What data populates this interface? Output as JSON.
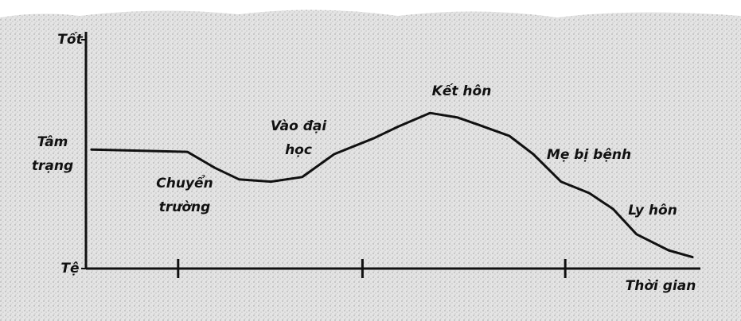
{
  "chart_data": {
    "type": "line",
    "y_label": "Tâm trạng",
    "x_label": "Thời gian",
    "xlim": [
      0,
      100
    ],
    "xticks": [
      15,
      45,
      78
    ],
    "ylim": [
      0,
      10
    ],
    "yticks": [
      {
        "value": 0,
        "label": "Tệ"
      },
      {
        "value": 10,
        "label": "Tốt"
      }
    ],
    "color": "#111111",
    "x": [
      0.9,
      16.5,
      21.0,
      24.9,
      30.1,
      35.2,
      40.4,
      46.9,
      50.8,
      56.0,
      60.5,
      63.7,
      68.9,
      72.8,
      77.3,
      81.9,
      85.8,
      89.6,
      94.8,
      98.7
    ],
    "values": [
      5.2,
      5.1,
      4.4,
      3.9,
      3.8,
      4.0,
      5.0,
      5.7,
      6.2,
      6.8,
      6.6,
      6.3,
      5.8,
      5.0,
      3.8,
      3.3,
      2.6,
      1.5,
      0.8,
      0.5
    ],
    "annotations": [
      "Chuyển trường",
      "Vào đại học",
      "Kết hôn",
      "Mẹ bị bệnh",
      "Ly hôn"
    ]
  }
}
